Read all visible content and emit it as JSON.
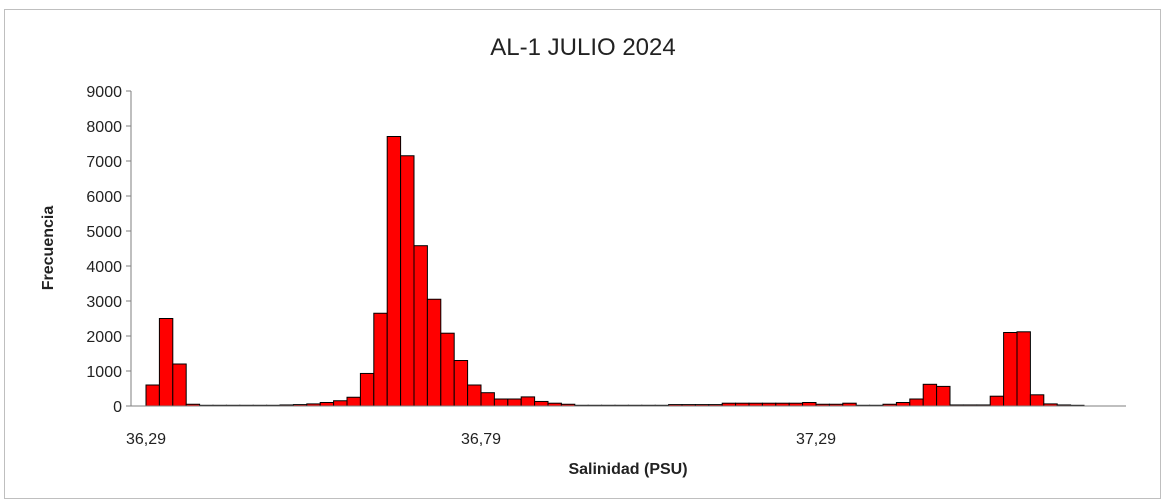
{
  "chart_data": {
    "type": "bar",
    "title": "AL-1 JULIO 2024",
    "xlabel": "Salinidad (PSU)",
    "ylabel": "Frecuencia",
    "ylim": [
      0,
      9000
    ],
    "yticks": [
      "0",
      "1000",
      "2000",
      "3000",
      "4000",
      "5000",
      "6000",
      "7000",
      "8000",
      "9000"
    ],
    "xticks": [
      "36,29",
      "36,79",
      "37,29"
    ],
    "grid": false,
    "legend": "none",
    "bar_color": "#ff0000",
    "bar_edge_color": "#000000",
    "values": [
      600,
      2500,
      1200,
      50,
      20,
      20,
      20,
      20,
      20,
      20,
      30,
      40,
      60,
      100,
      150,
      250,
      930,
      2650,
      7700,
      7150,
      4580,
      3050,
      2080,
      1300,
      600,
      380,
      200,
      200,
      260,
      130,
      80,
      50,
      20,
      20,
      20,
      20,
      20,
      20,
      20,
      40,
      40,
      40,
      40,
      80,
      80,
      80,
      80,
      80,
      80,
      100,
      50,
      50,
      80,
      20,
      20,
      50,
      100,
      200,
      620,
      560,
      30,
      30,
      30,
      280,
      2100,
      2120,
      320,
      60,
      30,
      20
    ]
  }
}
